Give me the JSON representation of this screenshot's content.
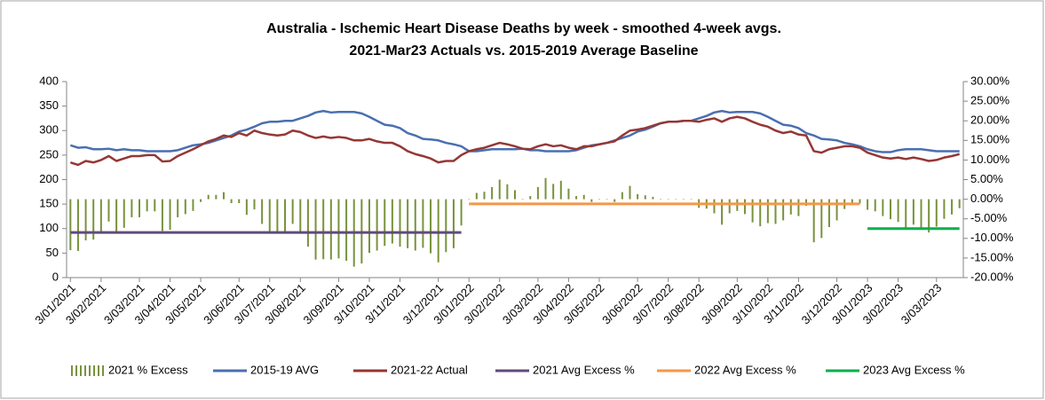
{
  "chart_data": {
    "type": "combo",
    "title": [
      "Australia - Ischemic Heart Disease Deaths by week - smoothed 4-week avgs.",
      "2021-Mar23 Actuals vs. 2015-2019 Average Baseline"
    ],
    "categories": [
      "3/01/2021",
      null,
      null,
      null,
      "3/02/2021",
      null,
      null,
      null,
      null,
      "3/03/2021",
      null,
      null,
      null,
      "3/04/2021",
      null,
      null,
      null,
      "3/05/2021",
      null,
      null,
      null,
      null,
      "3/06/2021",
      null,
      null,
      null,
      "3/07/2021",
      null,
      null,
      null,
      "3/08/2021",
      null,
      null,
      null,
      null,
      "3/09/2021",
      null,
      null,
      null,
      "3/10/2021",
      null,
      null,
      null,
      "3/11/2021",
      null,
      null,
      null,
      null,
      "3/12/2021",
      null,
      null,
      null,
      "3/01/2022",
      null,
      null,
      null,
      "3/02/2022",
      null,
      null,
      null,
      null,
      "3/03/2022",
      null,
      null,
      null,
      "3/04/2022",
      null,
      null,
      null,
      "3/05/2022",
      null,
      null,
      null,
      null,
      "3/06/2022",
      null,
      null,
      null,
      "3/07/2022",
      null,
      null,
      null,
      "3/08/2022",
      null,
      null,
      null,
      null,
      "3/09/2022",
      null,
      null,
      null,
      "3/10/2022",
      null,
      null,
      null,
      "3/11/2022",
      null,
      null,
      null,
      null,
      "3/12/2022",
      null,
      null,
      null,
      "3/01/2023",
      null,
      null,
      null,
      "3/02/2023",
      null,
      null,
      null,
      null,
      "3/03/2023",
      null,
      null,
      null
    ],
    "ylim": [
      0,
      400
    ],
    "yticks": [
      0,
      50,
      100,
      150,
      200,
      250,
      300,
      350,
      400
    ],
    "y2lim": [
      -20,
      30
    ],
    "y2ticks": [
      {
        "value": -20,
        "label": "-20.00%"
      },
      {
        "value": -15,
        "label": "-15.00%"
      },
      {
        "value": -10,
        "label": "-10.00%"
      },
      {
        "value": -5,
        "label": "-5.00%"
      },
      {
        "value": 0,
        "label": "0.00%"
      },
      {
        "value": 5,
        "label": "5.00%"
      },
      {
        "value": 10,
        "label": "10.00%"
      },
      {
        "value": 15,
        "label": "15.00%"
      },
      {
        "value": 20,
        "label": "20.00%"
      },
      {
        "value": 25,
        "label": "25.00%"
      },
      {
        "value": 30,
        "label": "30.00%"
      }
    ],
    "grid": false,
    "legend": "bottom",
    "series": [
      {
        "name": "2021 % Excess",
        "type": "bar",
        "axis": "y2",
        "color": "#77933c",
        "values": [
          -13.0,
          -13.2,
          -10.5,
          -10.3,
          -8.4,
          -5.7,
          -8.5,
          -7.3,
          -4.6,
          -4.6,
          -3.1,
          -3.1,
          -8.1,
          -7.8,
          -4.6,
          -3.8,
          -3.0,
          -0.7,
          1.1,
          1.1,
          1.8,
          -1.0,
          -1.0,
          -4.0,
          -2.6,
          -6.3,
          -8.2,
          -8.8,
          -8.8,
          -6.3,
          -8.6,
          -12.1,
          -15.4,
          -15.3,
          -15.4,
          -15.1,
          -15.7,
          -17.2,
          -16.4,
          -13.7,
          -13.1,
          -11.9,
          -11.3,
          -12.1,
          -12.5,
          -13.1,
          -12.4,
          -13.8,
          -16.1,
          -13.5,
          -12.5,
          -6.7,
          0.0,
          1.6,
          1.9,
          3.1,
          5.0,
          3.8,
          2.3,
          0.0,
          0.8,
          3.1,
          5.4,
          3.9,
          4.7,
          2.7,
          0.8,
          1.1,
          -0.7,
          0.0,
          0.0,
          -0.7,
          1.8,
          3.4,
          1.3,
          1.0,
          0.6,
          0.0,
          0.0,
          0.0,
          0.0,
          0.0,
          -2.2,
          -2.4,
          -3.6,
          -6.5,
          -3.6,
          -3.0,
          -3.8,
          -5.9,
          -6.9,
          -6.1,
          -6.3,
          -5.4,
          -3.9,
          -4.3,
          -1.7,
          -11.0,
          -9.9,
          -7.1,
          -5.4,
          -2.5,
          -1.5,
          -1.1,
          -2.7,
          -3.1,
          -4.3,
          -5.1,
          -5.8,
          -7.6,
          -6.5,
          -7.6,
          -8.5,
          -7.0,
          -5.0,
          -3.9,
          -2.3
        ]
      },
      {
        "name": "2015-19 AVG",
        "type": "line",
        "color": "#4a6fb0",
        "values": [
          270,
          265,
          266,
          262,
          262,
          263,
          260,
          262,
          260,
          260,
          258,
          258,
          258,
          258,
          260,
          265,
          270,
          272,
          275,
          280,
          285,
          290,
          298,
          302,
          308,
          315,
          318,
          318,
          320,
          320,
          325,
          330,
          337,
          340,
          337,
          338,
          338,
          338,
          335,
          328,
          320,
          312,
          310,
          305,
          295,
          290,
          283,
          282,
          280,
          275,
          272,
          268,
          258,
          258,
          260,
          262,
          262,
          262,
          262,
          263,
          260,
          260,
          258,
          258,
          258,
          258,
          260,
          265,
          270,
          272,
          275,
          280,
          285,
          290,
          298,
          302,
          308,
          315,
          318,
          318,
          320,
          320,
          325,
          330,
          337,
          340,
          337,
          338,
          338,
          338,
          335,
          328,
          320,
          312,
          310,
          305,
          295,
          290,
          283,
          282,
          280,
          275,
          272,
          268,
          262,
          258,
          256,
          256,
          260,
          262,
          262,
          262,
          260,
          258,
          258,
          258,
          258
        ]
      },
      {
        "name": "2021-22 Actual",
        "type": "line",
        "color": "#953735",
        "values": [
          235,
          230,
          238,
          235,
          240,
          248,
          238,
          243,
          248,
          248,
          250,
          250,
          237,
          238,
          248,
          255,
          262,
          270,
          278,
          283,
          290,
          287,
          295,
          290,
          300,
          295,
          292,
          290,
          292,
          300,
          297,
          290,
          285,
          288,
          285,
          287,
          285,
          280,
          280,
          283,
          278,
          275,
          275,
          268,
          258,
          252,
          248,
          243,
          235,
          238,
          238,
          250,
          258,
          262,
          265,
          270,
          275,
          272,
          268,
          263,
          262,
          268,
          272,
          268,
          270,
          265,
          262,
          268,
          268,
          272,
          275,
          278,
          290,
          300,
          302,
          305,
          310,
          315,
          318,
          318,
          320,
          320,
          318,
          322,
          325,
          318,
          325,
          328,
          325,
          318,
          312,
          308,
          300,
          295,
          298,
          292,
          290,
          258,
          255,
          262,
          265,
          268,
          268,
          265,
          255,
          250,
          245,
          243,
          245,
          242,
          245,
          242,
          238,
          240,
          245,
          248,
          252
        ]
      },
      {
        "name": "2021 Avg Excess %",
        "type": "line",
        "axis": "y2",
        "color": "#604a7b",
        "values": [
          -8.5,
          -8.5,
          -8.5,
          -8.5,
          -8.5,
          -8.5,
          -8.5,
          -8.5,
          -8.5,
          -8.5,
          -8.5,
          -8.5,
          -8.5,
          -8.5,
          -8.5,
          -8.5,
          -8.5,
          -8.5,
          -8.5,
          -8.5,
          -8.5,
          -8.5,
          -8.5,
          -8.5,
          -8.5,
          -8.5,
          -8.5,
          -8.5,
          -8.5,
          -8.5,
          -8.5,
          -8.5,
          -8.5,
          -8.5,
          -8.5,
          -8.5,
          -8.5,
          -8.5,
          -8.5,
          -8.5,
          -8.5,
          -8.5,
          -8.5,
          -8.5,
          -8.5,
          -8.5,
          -8.5,
          -8.5,
          -8.5,
          -8.5,
          -8.5,
          -8.5,
          null,
          null,
          null,
          null,
          null,
          null,
          null,
          null,
          null,
          null,
          null,
          null,
          null,
          null,
          null,
          null,
          null,
          null,
          null,
          null,
          null,
          null,
          null,
          null,
          null,
          null,
          null,
          null,
          null,
          null,
          null,
          null,
          null,
          null,
          null,
          null,
          null,
          null,
          null,
          null,
          null,
          null,
          null,
          null,
          null,
          null,
          null,
          null,
          null,
          null,
          null,
          null,
          null,
          null,
          null,
          null,
          null,
          null,
          null,
          null,
          null,
          null,
          null,
          null,
          null
        ]
      },
      {
        "name": "2022 Avg Excess %",
        "type": "line",
        "axis": "y2",
        "color": "#f79646",
        "values": [
          null,
          null,
          null,
          null,
          null,
          null,
          null,
          null,
          null,
          null,
          null,
          null,
          null,
          null,
          null,
          null,
          null,
          null,
          null,
          null,
          null,
          null,
          null,
          null,
          null,
          null,
          null,
          null,
          null,
          null,
          null,
          null,
          null,
          null,
          null,
          null,
          null,
          null,
          null,
          null,
          null,
          null,
          null,
          null,
          null,
          null,
          null,
          null,
          null,
          null,
          null,
          null,
          -1.2,
          -1.2,
          -1.2,
          -1.2,
          -1.2,
          -1.2,
          -1.2,
          -1.2,
          -1.2,
          -1.2,
          -1.2,
          -1.2,
          -1.2,
          -1.2,
          -1.2,
          -1.2,
          -1.2,
          -1.2,
          -1.2,
          -1.2,
          -1.2,
          -1.2,
          -1.2,
          -1.2,
          -1.2,
          -1.2,
          -1.2,
          -1.2,
          -1.2,
          -1.2,
          -1.2,
          -1.2,
          -1.2,
          -1.2,
          -1.2,
          -1.2,
          -1.2,
          -1.2,
          -1.2,
          -1.2,
          -1.2,
          -1.2,
          -1.2,
          -1.2,
          -1.2,
          -1.2,
          -1.2,
          -1.2,
          -1.2,
          -1.2,
          -1.2,
          -1.2,
          null,
          null,
          null,
          null,
          null,
          null,
          null,
          null,
          null,
          null,
          null,
          null,
          null
        ]
      },
      {
        "name": "2023 Avg Excess %",
        "type": "line",
        "axis": "y2",
        "color": "#00b050",
        "values": [
          null,
          null,
          null,
          null,
          null,
          null,
          null,
          null,
          null,
          null,
          null,
          null,
          null,
          null,
          null,
          null,
          null,
          null,
          null,
          null,
          null,
          null,
          null,
          null,
          null,
          null,
          null,
          null,
          null,
          null,
          null,
          null,
          null,
          null,
          null,
          null,
          null,
          null,
          null,
          null,
          null,
          null,
          null,
          null,
          null,
          null,
          null,
          null,
          null,
          null,
          null,
          null,
          null,
          null,
          null,
          null,
          null,
          null,
          null,
          null,
          null,
          null,
          null,
          null,
          null,
          null,
          null,
          null,
          null,
          null,
          null,
          null,
          null,
          null,
          null,
          null,
          null,
          null,
          null,
          null,
          null,
          null,
          null,
          null,
          null,
          null,
          null,
          null,
          null,
          null,
          null,
          null,
          null,
          null,
          null,
          null,
          null,
          null,
          null,
          null,
          null,
          null,
          null,
          null,
          -7.5,
          -7.5,
          -7.5,
          -7.5,
          -7.5,
          -7.5,
          -7.5,
          -7.5,
          -7.5,
          -7.5,
          -7.5,
          -7.5,
          -7.5
        ]
      }
    ]
  }
}
